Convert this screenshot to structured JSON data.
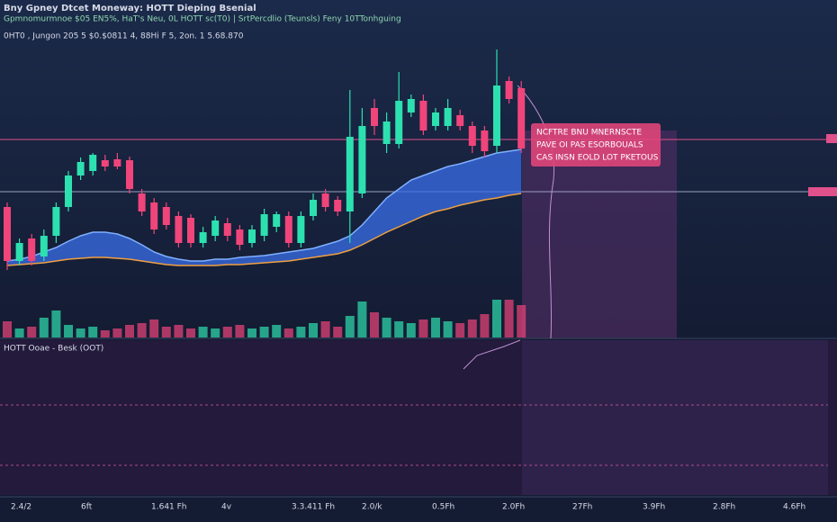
{
  "chart_data": {
    "type": "candlestick",
    "title": "Bny Gpney Dtcet Moneway: HOTT Dieping Bsenial",
    "subtitle": "Gpmnomurmnoe $05 EN5%, HaT's Neu, 0L HOTT sc(T0) | SrtPercdlio (Teunsls) Feny 10TTonhguing",
    "info_line": "0HT0 , Jungon 205 5 $0.$0811 4, 88Hi F 5, 2on. 1 5.68.870",
    "annotation": [
      "NCFTRE BNU MNERNSCTE",
      "PAVE OI PAS ESORBOUALS",
      "CAS INSN EOLD LOT PKETOUS"
    ],
    "lower_panel_title": "HOTT Ooae - Besk (OOT)",
    "x_tick_labels": [
      "2.4/2",
      "6ft",
      "1.641 Fh",
      "4v",
      "3.3.411 Fh",
      "2.0/k",
      "0.5Fh",
      "2.0Fh",
      "27Fh",
      "3.9Fh",
      "2.8Fh",
      "4.6Fh"
    ],
    "up_color": "#2de0b0",
    "down_color": "#f0457a",
    "ylim": [
      0,
      260
    ],
    "open": [
      80,
      20,
      45,
      25,
      48,
      80,
      115,
      120,
      132,
      133,
      132,
      95,
      85,
      80,
      70,
      68,
      40,
      48,
      62,
      55,
      40,
      48,
      58,
      70,
      40,
      70,
      95,
      88,
      75,
      95,
      190,
      150,
      150,
      185,
      198,
      170,
      170,
      182,
      170,
      165,
      148,
      220,
      212
    ],
    "high": [
      85,
      45,
      50,
      55,
      85,
      120,
      135,
      140,
      138,
      140,
      136,
      100,
      90,
      85,
      75,
      72,
      58,
      70,
      68,
      60,
      60,
      78,
      75,
      75,
      75,
      95,
      100,
      92,
      210,
      190,
      200,
      185,
      230,
      205,
      205,
      190,
      200,
      188,
      175,
      170,
      255,
      225,
      220
    ],
    "low": [
      10,
      15,
      15,
      20,
      40,
      75,
      110,
      115,
      120,
      122,
      95,
      70,
      50,
      55,
      35,
      35,
      35,
      42,
      42,
      32,
      35,
      42,
      52,
      35,
      35,
      65,
      75,
      70,
      40,
      90,
      160,
      140,
      145,
      180,
      160,
      165,
      165,
      165,
      140,
      135,
      140,
      195,
      140
    ],
    "close": [
      20,
      40,
      20,
      48,
      80,
      115,
      130,
      138,
      125,
      125,
      100,
      75,
      55,
      60,
      40,
      40,
      52,
      65,
      48,
      38,
      55,
      72,
      72,
      40,
      70,
      88,
      80,
      75,
      158,
      170,
      170,
      175,
      198,
      200,
      165,
      185,
      190,
      170,
      148,
      142,
      215,
      200,
      145
    ],
    "volume": [
      18,
      10,
      12,
      22,
      30,
      14,
      10,
      12,
      8,
      10,
      14,
      16,
      20,
      12,
      14,
      10,
      12,
      10,
      12,
      14,
      10,
      12,
      14,
      10,
      12,
      16,
      18,
      12,
      24,
      40,
      28,
      22,
      18,
      16,
      20,
      22,
      18,
      16,
      20,
      26,
      42,
      42,
      36
    ],
    "band_upper": [
      20,
      22,
      25,
      30,
      35,
      42,
      48,
      52,
      52,
      50,
      45,
      38,
      30,
      25,
      22,
      20,
      20,
      22,
      22,
      24,
      25,
      26,
      28,
      30,
      32,
      34,
      38,
      42,
      48,
      60,
      75,
      90,
      100,
      110,
      115,
      120,
      125,
      128,
      132,
      136,
      140,
      142,
      144
    ],
    "band_lower": [
      15,
      16,
      17,
      18,
      20,
      22,
      23,
      24,
      24,
      23,
      22,
      20,
      18,
      16,
      15,
      15,
      15,
      15,
      16,
      16,
      17,
      18,
      19,
      20,
      22,
      24,
      26,
      28,
      32,
      38,
      45,
      52,
      58,
      64,
      70,
      75,
      78,
      82,
      85,
      88,
      90,
      93,
      95
    ],
    "band_color": "#3a6ee8",
    "line_color": "#f0a040"
  }
}
